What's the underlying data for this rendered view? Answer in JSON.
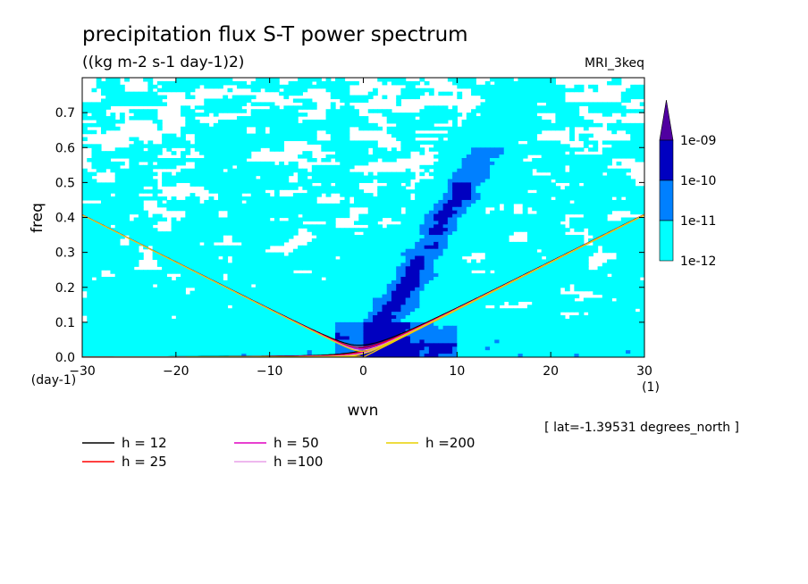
{
  "chart_data": {
    "type": "heatmap",
    "title": "precipitation flux S-T power spectrum",
    "subtitle": "((kg m-2 s-1 day-1)2)",
    "model": "MRI_3keq",
    "xlabel": "wvn",
    "ylabel": "freq",
    "x_unit": "(1)",
    "y_unit": "(day-1)",
    "xlim": [
      -30,
      30
    ],
    "ylim": [
      0,
      0.8
    ],
    "x_ticks": [
      -30,
      -20,
      -10,
      0,
      10,
      20,
      30
    ],
    "y_ticks": [
      0.0,
      0.1,
      0.2,
      0.3,
      0.4,
      0.5,
      0.6,
      0.7
    ],
    "lat_note": "[ lat=-1.39531 degrees_north ]",
    "colorbar": {
      "labels": [
        "1e-12",
        "1e-11",
        "1e-10",
        "1e-09"
      ],
      "levels": [
        1e-12,
        1e-11,
        1e-10,
        1e-09
      ],
      "colors": [
        "#ffffff",
        "#00ffff",
        "#0080ff",
        "#0000c0",
        "#5000a0"
      ]
    },
    "dispersion_curves": [
      {
        "label": "h = 12",
        "h": 12,
        "color": "#000000"
      },
      {
        "label": "h = 25",
        "h": 25,
        "color": "#ff0000"
      },
      {
        "label": "h = 50",
        "h": 50,
        "color": "#e000c0"
      },
      {
        "label": "h =100",
        "h": 100,
        "color": "#e8a0e8"
      },
      {
        "label": "h =200",
        "h": 200,
        "color": "#e8d000"
      }
    ]
  }
}
